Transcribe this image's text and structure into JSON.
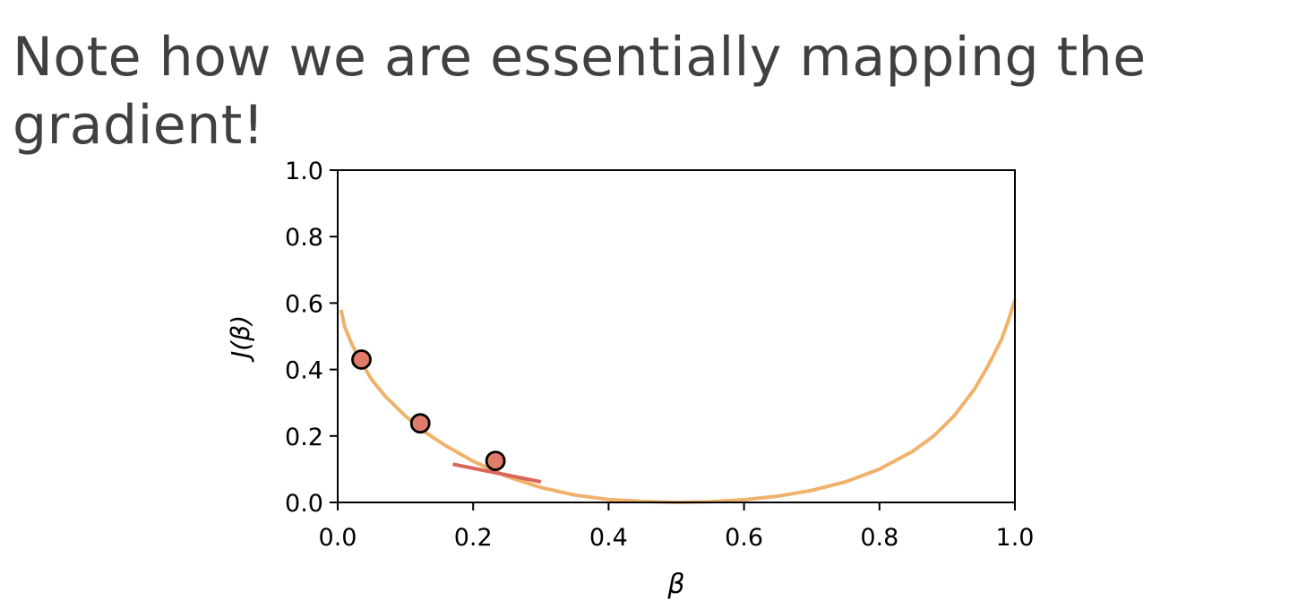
{
  "slide": {
    "title": "Note how we are essentially mapping the gradient!"
  },
  "chart_data": {
    "type": "line",
    "title": "",
    "xlabel": "β",
    "ylabel": "J(β)",
    "xlim": [
      0.0,
      1.0
    ],
    "ylim": [
      0.0,
      1.0
    ],
    "xticks": [
      0.0,
      0.2,
      0.4,
      0.6,
      0.8,
      1.0
    ],
    "yticks": [
      0.0,
      0.2,
      0.4,
      0.6,
      0.8,
      1.0
    ],
    "grid": false,
    "series": [
      {
        "role": "curve",
        "color": "#f0b26b",
        "x": [
          0.005,
          0.01,
          0.02,
          0.03,
          0.05,
          0.07,
          0.1,
          0.13,
          0.16,
          0.2,
          0.25,
          0.3,
          0.35,
          0.4,
          0.45,
          0.5,
          0.55,
          0.6,
          0.65,
          0.7,
          0.75,
          0.8,
          0.85,
          0.88,
          0.91,
          0.94,
          0.96,
          0.98,
          0.99,
          1.0
        ],
        "y": [
          0.58,
          0.53,
          0.48,
          0.44,
          0.37,
          0.32,
          0.26,
          0.21,
          0.17,
          0.124,
          0.078,
          0.045,
          0.022,
          0.009,
          0.003,
          0.0,
          0.002,
          0.008,
          0.019,
          0.036,
          0.062,
          0.1,
          0.155,
          0.2,
          0.26,
          0.34,
          0.41,
          0.49,
          0.545,
          0.61
        ]
      },
      {
        "role": "tangent",
        "color": "#d9665a",
        "x": [
          0.17,
          0.3
        ],
        "y": [
          0.115,
          0.062
        ]
      },
      {
        "role": "points",
        "color": "#e07b6a",
        "edge_color": "#000000",
        "x": [
          0.035,
          0.122,
          0.233
        ],
        "y": [
          0.43,
          0.238,
          0.125
        ]
      }
    ]
  }
}
